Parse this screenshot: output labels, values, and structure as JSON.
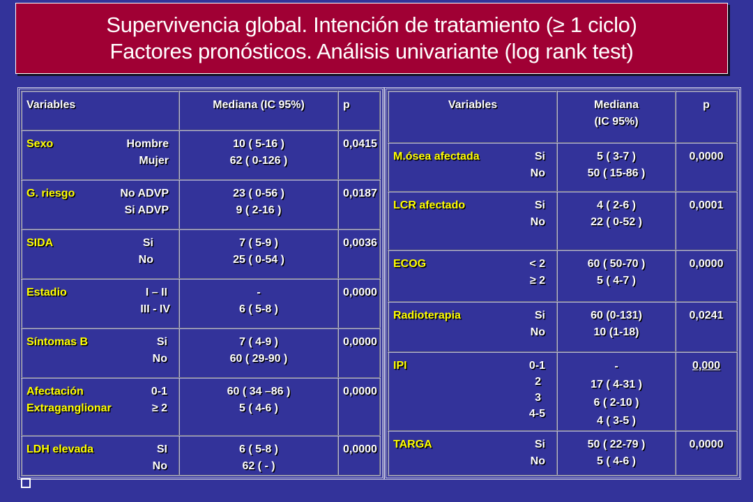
{
  "title": {
    "line1": "Supervivencia global. Intención de tratamiento (≥ 1 ciclo)",
    "line2": "Factores pronósticos. Análisis univariante (log rank test)"
  },
  "colors": {
    "background": "#33339a",
    "title_bg": "#a00034",
    "label": "#ffff00",
    "value": "#ffffff"
  },
  "left_table": {
    "headers": {
      "variables": "Variables",
      "median": "Mediana (IC 95%)",
      "p": "p"
    },
    "rows": [
      {
        "label": "Sexo",
        "cats": [
          "Hombre",
          "Mujer"
        ],
        "median": [
          "10  ( 5-16 )",
          "62  ( 0-126 )"
        ],
        "p": "0,0415"
      },
      {
        "label": "G. riesgo",
        "cats": [
          "No ADVP",
          "Si ADVP"
        ],
        "median": [
          "23  ( 0-56 )",
          "9  ( 2-16 )"
        ],
        "p": "0,0187"
      },
      {
        "label": "SIDA",
        "cats": [
          "Si",
          "No"
        ],
        "median": [
          "7  ( 5-9  )",
          "25  ( 0-54 )"
        ],
        "p": "0,0036"
      },
      {
        "label": "Estadio",
        "cats": [
          "I – II",
          "III - IV"
        ],
        "median": [
          "-",
          "6  ( 5-8 )"
        ],
        "p": "0,0000"
      },
      {
        "label": "Síntomas B",
        "cats": [
          "Si",
          "No"
        ],
        "median": [
          "7  ( 4-9 )",
          "60  ( 29-90 )"
        ],
        "p": "0,0000"
      },
      {
        "label": "Afectación",
        "label2": "Extraganglionar",
        "cats": [
          "0-1",
          "≥  2"
        ],
        "median": [
          "60  ( 34 –86 )",
          "5  ( 4-6 )"
        ],
        "p": "0,0000"
      },
      {
        "label": "LDH  elevada",
        "cats": [
          "SI",
          "No"
        ],
        "median": [
          "6  ( 5-8 )",
          "62  ( - )"
        ],
        "p": "0,0000"
      }
    ]
  },
  "right_table": {
    "headers": {
      "variables": "Variables",
      "median_l1": "Mediana",
      "median_l2": "(IC 95%)",
      "p": "p"
    },
    "rows": [
      {
        "label": "M.ósea afectada",
        "cats": [
          "Si",
          "No"
        ],
        "median": [
          "5  (  3-7 )",
          "50  ( 15-86 )"
        ],
        "p": "0,0000"
      },
      {
        "label": "LCR afectado",
        "cats": [
          "Si",
          "No"
        ],
        "median": [
          "4  ( 2-6 )",
          "22  ( 0-52 )"
        ],
        "p": "0,0001"
      },
      {
        "label": "ECOG",
        "cats": [
          "< 2",
          "≥ 2"
        ],
        "median": [
          "60  ( 50-70 )",
          "5  ( 4-7 )"
        ],
        "p": "0,0000"
      },
      {
        "label": "Radioterapia",
        "cats": [
          "Si",
          "No"
        ],
        "median": [
          "60 (0-131)",
          "10 (1-18)"
        ],
        "p": "0,0241"
      },
      {
        "label": "IPI",
        "cats": [
          "0-1",
          "2",
          "3",
          "4-5"
        ],
        "median": [
          "-",
          "17  ( 4-31 )",
          "6  ( 2-10  )",
          "4  ( 3-5 )"
        ],
        "p": "0,000"
      },
      {
        "label": "TARGA",
        "cats": [
          "Si",
          "No"
        ],
        "median": [
          "50  ( 22-79 )",
          "5  ( 4-6 )"
        ],
        "p": "0,0000"
      }
    ]
  }
}
